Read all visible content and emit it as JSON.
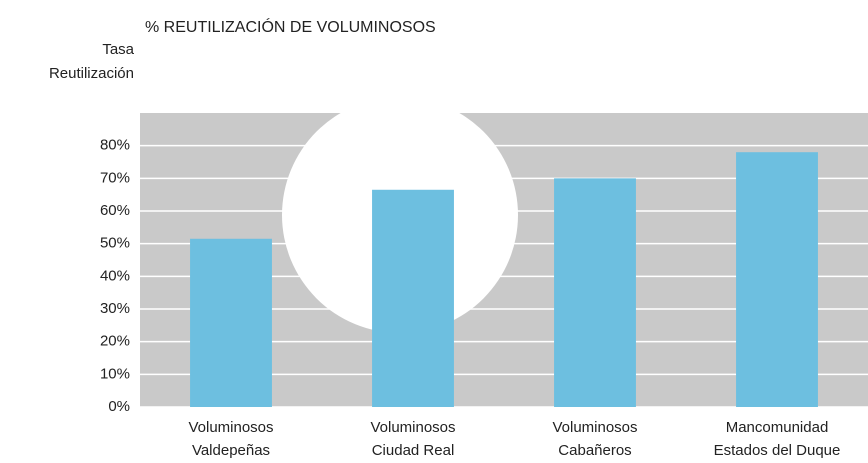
{
  "chart_data": {
    "type": "bar",
    "title": "% REUTILIZACIÓN DE VOLUMINOSOS",
    "y_label": [
      "Tasa",
      "Reutilización"
    ],
    "categories": [
      [
        "Voluminosos",
        "Valdepeñas"
      ],
      [
        "Voluminosos",
        "Ciudad Real"
      ],
      [
        "Voluminosos",
        "Cabañeros"
      ],
      [
        "Mancomunidad",
        "Estados del Duque"
      ]
    ],
    "values": [
      51.5,
      66.5,
      70,
      78
    ],
    "color": "#6dbfe0",
    "ylim": [
      0,
      90
    ],
    "yticks": [
      {
        "value": 0,
        "label": "0%"
      },
      {
        "value": 10,
        "label": "10%"
      },
      {
        "value": 20,
        "label": "20%"
      },
      {
        "value": 30,
        "label": "30%"
      },
      {
        "value": 40,
        "label": "40%"
      },
      {
        "value": 50,
        "label": "50%"
      },
      {
        "value": 60,
        "label": "60%"
      },
      {
        "value": 70,
        "label": "70%"
      },
      {
        "value": 80,
        "label": "80%"
      }
    ],
    "grid": true
  }
}
